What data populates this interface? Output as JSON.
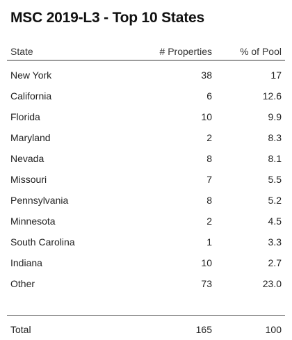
{
  "title": "MSC 2019-L3 - Top 10 States",
  "table": {
    "headers": {
      "state": "State",
      "properties": "# Properties",
      "pool": "% of Pool"
    },
    "rows": [
      {
        "state": "New York",
        "properties": "38",
        "pool": "17"
      },
      {
        "state": "California",
        "properties": "6",
        "pool": "12.6"
      },
      {
        "state": "Florida",
        "properties": "10",
        "pool": "9.9"
      },
      {
        "state": "Maryland",
        "properties": "2",
        "pool": "8.3"
      },
      {
        "state": "Nevada",
        "properties": "8",
        "pool": "8.1"
      },
      {
        "state": "Missouri",
        "properties": "7",
        "pool": "5.5"
      },
      {
        "state": "Pennsylvania",
        "properties": "8",
        "pool": "5.2"
      },
      {
        "state": "Minnesota",
        "properties": "2",
        "pool": "4.5"
      },
      {
        "state": "South Carolina",
        "properties": "1",
        "pool": "3.3"
      },
      {
        "state": "Indiana",
        "properties": "10",
        "pool": "2.7"
      },
      {
        "state": "Other",
        "properties": "73",
        "pool": "23.0"
      }
    ],
    "total": {
      "state": "Total",
      "properties": "165",
      "pool": "100"
    }
  }
}
